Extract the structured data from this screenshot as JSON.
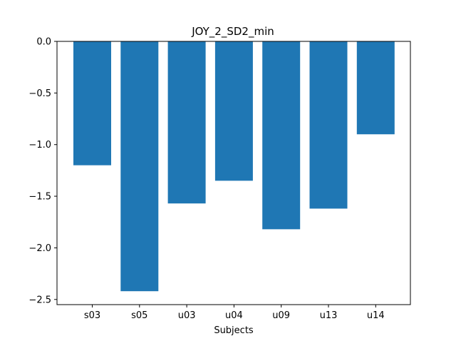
{
  "chart_data": {
    "type": "bar",
    "title": "JOY_2_SD2_min",
    "xlabel": "Subjects",
    "ylabel": "",
    "categories": [
      "s03",
      "s05",
      "u03",
      "u04",
      "u09",
      "u13",
      "u14"
    ],
    "values": [
      -1.2,
      -2.42,
      -1.57,
      -1.35,
      -1.82,
      -1.62,
      -0.9
    ],
    "ylim": [
      -2.55,
      0.0
    ],
    "yticks": [
      0.0,
      -0.5,
      -1.0,
      -1.5,
      -2.0,
      -2.5
    ],
    "ytick_labels": [
      "0.0",
      "−0.5",
      "−1.0",
      "−1.5",
      "−2.0",
      "−2.5"
    ],
    "bar_color": "#1f77b4",
    "grid": false,
    "legend": "none"
  }
}
